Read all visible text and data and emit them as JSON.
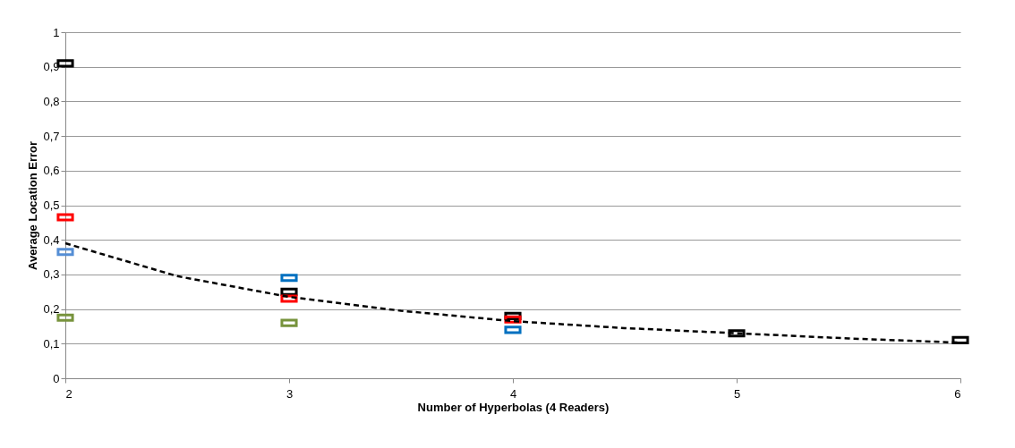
{
  "chart_data": {
    "type": "scatter",
    "xlabel": "Number of Hyperbolas  (4 Readers)",
    "ylabel": "Average Location  Error",
    "x": [
      2,
      3,
      4,
      5,
      6
    ],
    "xlim": [
      2,
      6
    ],
    "xticks": [
      2,
      3,
      4,
      5,
      6
    ],
    "ylim": [
      0,
      1
    ],
    "yticks": [
      0,
      {
        "value": 0.1,
        "label": "0,1"
      },
      {
        "value": 0.2,
        "label": "0,2"
      },
      {
        "value": 0.3,
        "label": "0,3"
      },
      {
        "value": 0.4,
        "label": "0,4"
      },
      {
        "value": 0.5,
        "label": "0,5"
      },
      {
        "value": 0.6,
        "label": "0,6"
      },
      {
        "value": 0.7,
        "label": "0,7"
      },
      {
        "value": 0.8,
        "label": "0,8"
      },
      {
        "value": 0.9,
        "label": "0,9"
      },
      1
    ],
    "grid": "y",
    "marker": "square",
    "series": [
      {
        "color": "#000000",
        "values": [
          0.91,
          0.25,
          0.18,
          0.13,
          0.11
        ]
      },
      {
        "color": "#ff0000",
        "values": [
          0.465,
          0.23,
          0.17,
          null,
          null
        ]
      },
      {
        "color": "#0070c0",
        "colors": [
          "#558ed5",
          "#0070c0",
          "#0070c0",
          null,
          null
        ],
        "values": [
          0.365,
          0.29,
          0.14,
          null,
          null
        ]
      },
      {
        "color": "#77933c",
        "values": [
          0.175,
          0.16,
          null,
          null,
          null
        ]
      },
      {
        "type": "line",
        "marker": "none",
        "line_style": "dashed",
        "color": "#000000",
        "x": [
          2,
          2.5,
          3,
          3.5,
          4,
          4.5,
          5,
          5.5,
          6
        ],
        "values": [
          0.39,
          0.295,
          0.235,
          0.195,
          0.165,
          0.145,
          0.13,
          0.115,
          0.103
        ]
      }
    ]
  }
}
